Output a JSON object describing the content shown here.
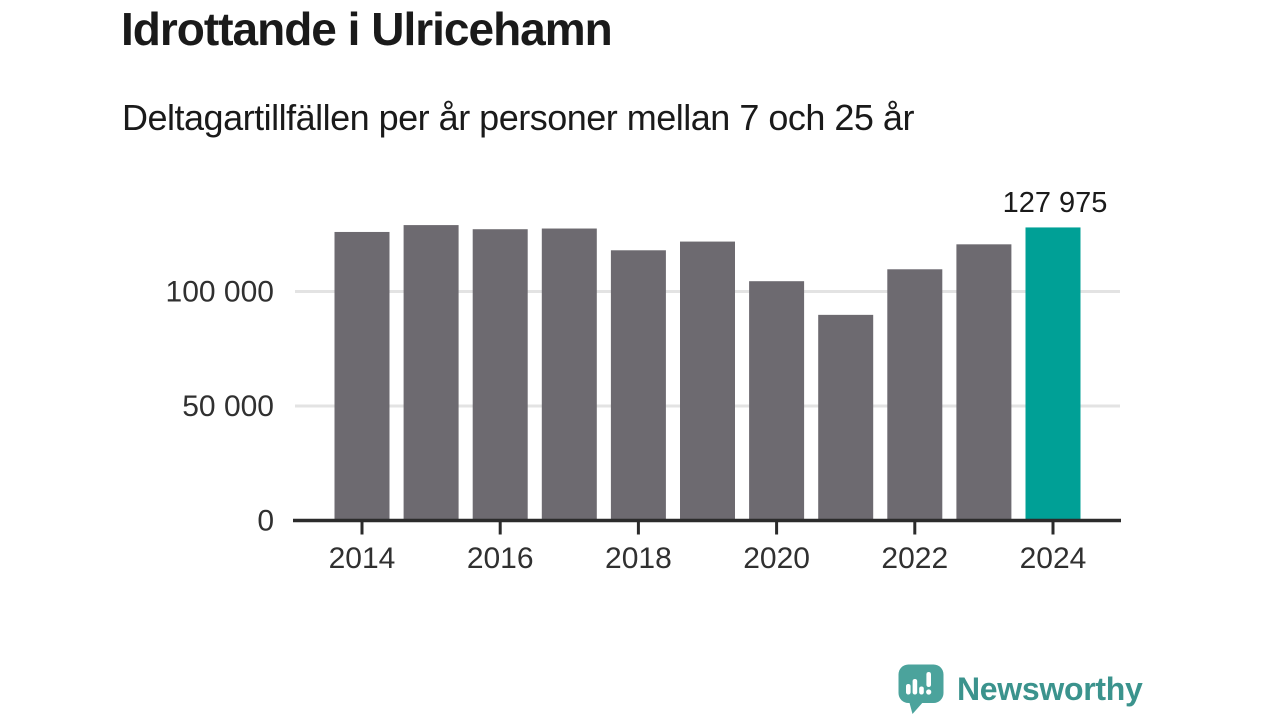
{
  "header": {
    "title": "Idrottande i Ulricehamn",
    "subtitle": "Deltagartillfällen per år personer mellan 7 och 25 år"
  },
  "chart_data": {
    "type": "bar",
    "title": "Idrottande i Ulricehamn",
    "subtitle": "Deltagartillfällen per år personer mellan 7 och 25 år",
    "categories": [
      2014,
      2015,
      2016,
      2017,
      2018,
      2019,
      2020,
      2021,
      2022,
      2023,
      2024
    ],
    "values": [
      126000,
      129000,
      127200,
      127500,
      118000,
      121800,
      104500,
      89800,
      109700,
      120600,
      127975
    ],
    "highlight": {
      "index": 10,
      "category": 2024,
      "label": "127 975"
    },
    "xlabel": "",
    "ylabel": "",
    "ylim": [
      0,
      132000
    ],
    "grid": true,
    "legend": null,
    "yticks": [
      {
        "v": 0,
        "label": "0"
      },
      {
        "v": 50000,
        "label": "50 000"
      },
      {
        "v": 100000,
        "label": "100 000"
      }
    ],
    "xtick_years": [
      "2014",
      "2016",
      "2018",
      "2020",
      "2022",
      "2024"
    ],
    "colors": {
      "bar": "#6d6a70",
      "highlight": "#00a096",
      "grid": "#e3e3e3",
      "axis": "#2b2b2b"
    }
  },
  "footer": {
    "brand_wordmark": "Newsworthy",
    "logo_icon": "newsworthy-speech-bubble-bar-chart-icon"
  },
  "theme": {
    "ink": "#1a1a1a",
    "muted": "#303030",
    "brand": "#3b938d",
    "bubble": "#4ba39c",
    "bubble-glyph": "#ffffff"
  }
}
